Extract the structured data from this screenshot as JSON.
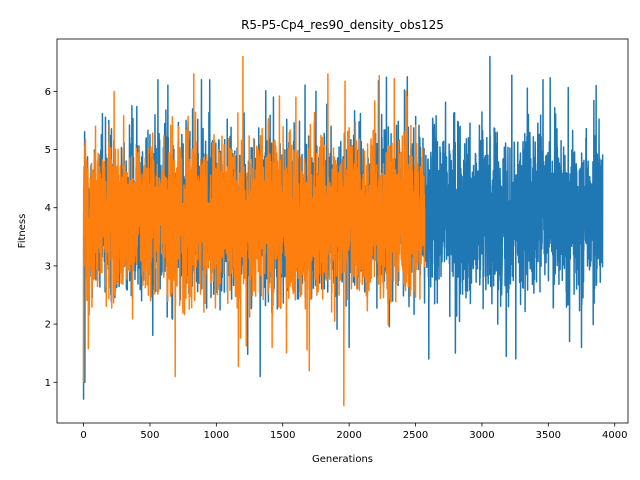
{
  "chart_data": {
    "type": "line",
    "title": "R5-P5-Cp4_res90_density_obs125",
    "xlabel": "Generations",
    "ylabel": "Fitness",
    "xlim": [
      -200,
      4100
    ],
    "ylim": [
      0.3,
      6.9
    ],
    "xticks": [
      0,
      500,
      1000,
      1500,
      2000,
      2500,
      3000,
      3500,
      4000
    ],
    "yticks": [
      1,
      2,
      3,
      4,
      5,
      6
    ],
    "xtick_labels": [
      "0",
      "500",
      "1000",
      "1500",
      "2000",
      "2500",
      "3000",
      "3500",
      "4000"
    ],
    "ytick_labels": [
      "1",
      "2",
      "3",
      "4",
      "5",
      "6"
    ],
    "grid": false,
    "legend": "none",
    "series": [
      {
        "color": "#1f77b4",
        "n_points": 3910,
        "range_hint": {
          "min": 0.7,
          "max": 6.6,
          "typical_low": 2.6,
          "typical_high": 5.2,
          "mean": 3.9
        },
        "notable_points": [
          [
            0,
            0.7
          ],
          [
            10,
            1.0
          ],
          [
            190,
            5.5
          ],
          [
            560,
            6.2
          ],
          [
            950,
            6.2
          ],
          [
            1330,
            1.1
          ],
          [
            1430,
            5.9
          ],
          [
            1750,
            6.0
          ],
          [
            2000,
            1.6
          ],
          [
            2600,
            1.4
          ],
          [
            2800,
            1.5
          ],
          [
            3060,
            6.6
          ],
          [
            3460,
            6.2
          ],
          [
            3660,
            1.7
          ],
          [
            3750,
            1.6
          ],
          [
            3860,
            6.1
          ],
          [
            3905,
            4.4
          ]
        ]
      },
      {
        "color": "#ff7f0e",
        "n_points": 2570,
        "range_hint": {
          "min": 0.6,
          "max": 6.6,
          "typical_low": 2.6,
          "typical_high": 5.0,
          "mean": 3.8
        },
        "notable_points": [
          [
            0,
            1.0
          ],
          [
            15,
            4.8
          ],
          [
            90,
            5.4
          ],
          [
            230,
            6.0
          ],
          [
            690,
            1.1
          ],
          [
            830,
            6.3
          ],
          [
            1200,
            6.6
          ],
          [
            1420,
            1.6
          ],
          [
            1700,
            1.2
          ],
          [
            1840,
            6.3
          ],
          [
            1960,
            0.6
          ],
          [
            2430,
            6.0
          ],
          [
            2560,
            4.2
          ]
        ]
      }
    ]
  }
}
